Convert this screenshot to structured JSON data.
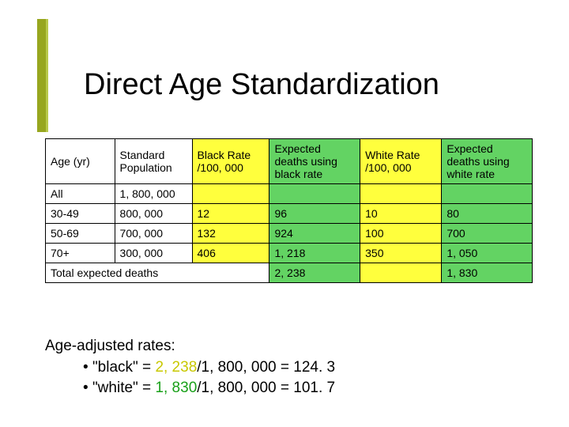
{
  "title": "Direct Age Standardization",
  "accent_color": "#97a61f",
  "accent_inner_color": "#b8c84a",
  "table": {
    "headers": {
      "age": "Age (yr)",
      "pop": "Standard Population",
      "black_rate": "Black Rate /100, 000",
      "exp_black": "Expected deaths using black rate",
      "white_rate": "White Rate /100, 000",
      "exp_white": "Expected deaths using white rate"
    },
    "rows": [
      {
        "age": "All",
        "pop": "1, 800, 000",
        "black_rate": "",
        "exp_black": "",
        "white_rate": "",
        "exp_white": ""
      },
      {
        "age": "30-49",
        "pop": "800, 000",
        "black_rate": "12",
        "exp_black": "96",
        "white_rate": "10",
        "exp_white": "80"
      },
      {
        "age": "50-69",
        "pop": "700, 000",
        "black_rate": "132",
        "exp_black": "924",
        "white_rate": "100",
        "exp_white": "700"
      },
      {
        "age": "70+",
        "pop": "300, 000",
        "black_rate": "406",
        "exp_black": "1, 218",
        "white_rate": "350",
        "exp_white": "1, 050"
      }
    ],
    "total": {
      "label": "Total expected deaths",
      "exp_black": "2, 238",
      "exp_white": "1, 830"
    },
    "colors": {
      "rate_bg": "#ffff3d",
      "expected_bg": "#63d363",
      "border": "#000000"
    }
  },
  "footer": {
    "line1": "Age-adjusted rates:",
    "bullet": "•",
    "black_label": "\"black\" = ",
    "black_value": "2, 238",
    "black_rest": "/1, 800, 000 = 124. 3",
    "white_label": "\"white\" = ",
    "white_value": "1, 830",
    "white_rest": "/1, 800, 000 = 101. 7"
  }
}
